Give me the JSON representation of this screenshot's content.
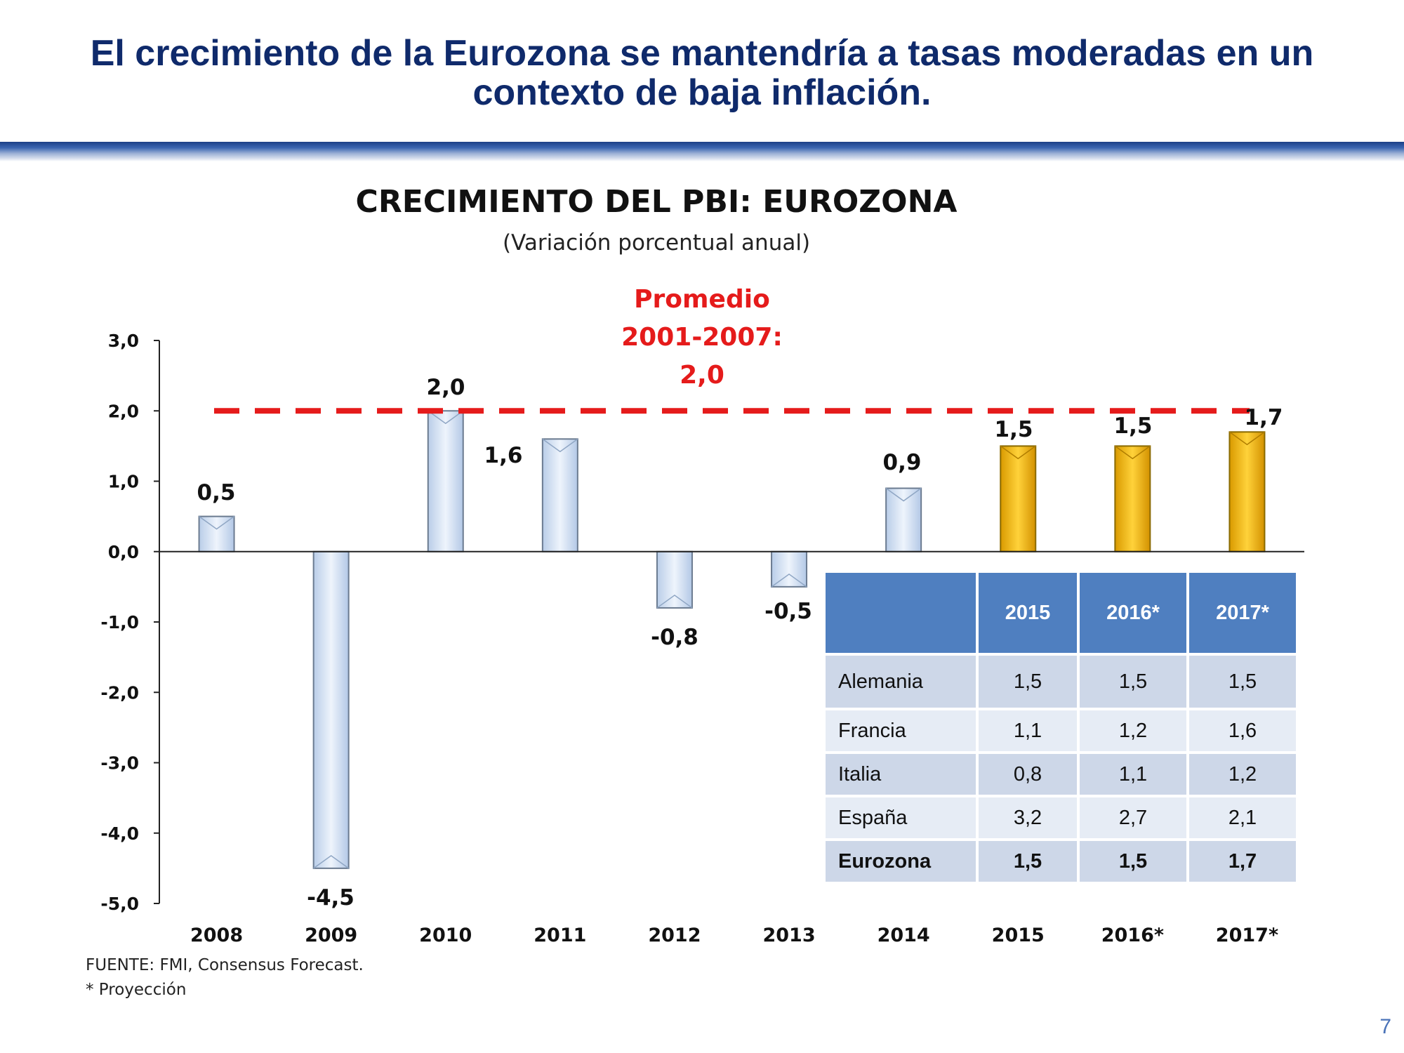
{
  "header": {
    "title_line1": "El crecimiento de la Eurozona se mantendría a tasas moderadas en un",
    "title_line2": "contexto de baja inflación."
  },
  "chart_data": {
    "type": "bar",
    "title": "CRECIMIENTO DEL PBI: EUROZONA",
    "subtitle": "(Variación porcentual anual)",
    "categories": [
      "2008",
      "2009",
      "2010",
      "2011",
      "2012",
      "2013",
      "2014",
      "2015",
      "2016*",
      "2017*"
    ],
    "values": [
      0.5,
      -4.5,
      2.0,
      1.6,
      -0.8,
      -0.5,
      0.9,
      1.5,
      1.5,
      1.7
    ],
    "value_labels": [
      "0,5",
      "-4,5",
      "2,0",
      "1,6",
      "-0,8",
      "-0,5",
      "0,9",
      "1,5",
      "1,5",
      "1,7"
    ],
    "projected": [
      false,
      false,
      false,
      false,
      false,
      false,
      false,
      true,
      true,
      true
    ],
    "ylim": [
      -5.0,
      3.0
    ],
    "yticks": [
      3.0,
      2.0,
      1.0,
      0.0,
      -1.0,
      -2.0,
      -3.0,
      -4.0,
      -5.0
    ],
    "ytick_labels": [
      "3,0",
      "2,0",
      "1,0",
      "0,0",
      "-1,0",
      "-2,0",
      "-3,0",
      "-4,0",
      "-5,0"
    ],
    "grid": false,
    "reference_line": {
      "value": 2.0,
      "label_lines": [
        "Promedio",
        "2001-2007:",
        "2,0"
      ],
      "color": "#e51b1b"
    },
    "colors": {
      "actual_bar": "#d5e4f6",
      "actual_bar_edge": "#6b7b90",
      "projected_bar": "#f2b800",
      "projected_bar_edge": "#8a6a00"
    }
  },
  "forecast_table": {
    "columns": [
      "",
      "2015",
      "2016*",
      "2017*"
    ],
    "rows": [
      {
        "name": "Alemania",
        "values": [
          "1,5",
          "1,5",
          "1,5"
        ]
      },
      {
        "name": "Francia",
        "values": [
          "1,1",
          "1,2",
          "1,6"
        ]
      },
      {
        "name": "Italia",
        "values": [
          "0,8",
          "1,1",
          "1,2"
        ]
      },
      {
        "name": "España",
        "values": [
          "3,2",
          "2,7",
          "2,1"
        ]
      },
      {
        "name": "Eurozona",
        "values": [
          "1,5",
          "1,5",
          "1,7"
        ]
      }
    ],
    "header_color": "#4f7fc0"
  },
  "footer": {
    "source": "FUENTE: FMI, Consensus Forecast.",
    "note": "* Proyección",
    "page_number": "7"
  }
}
